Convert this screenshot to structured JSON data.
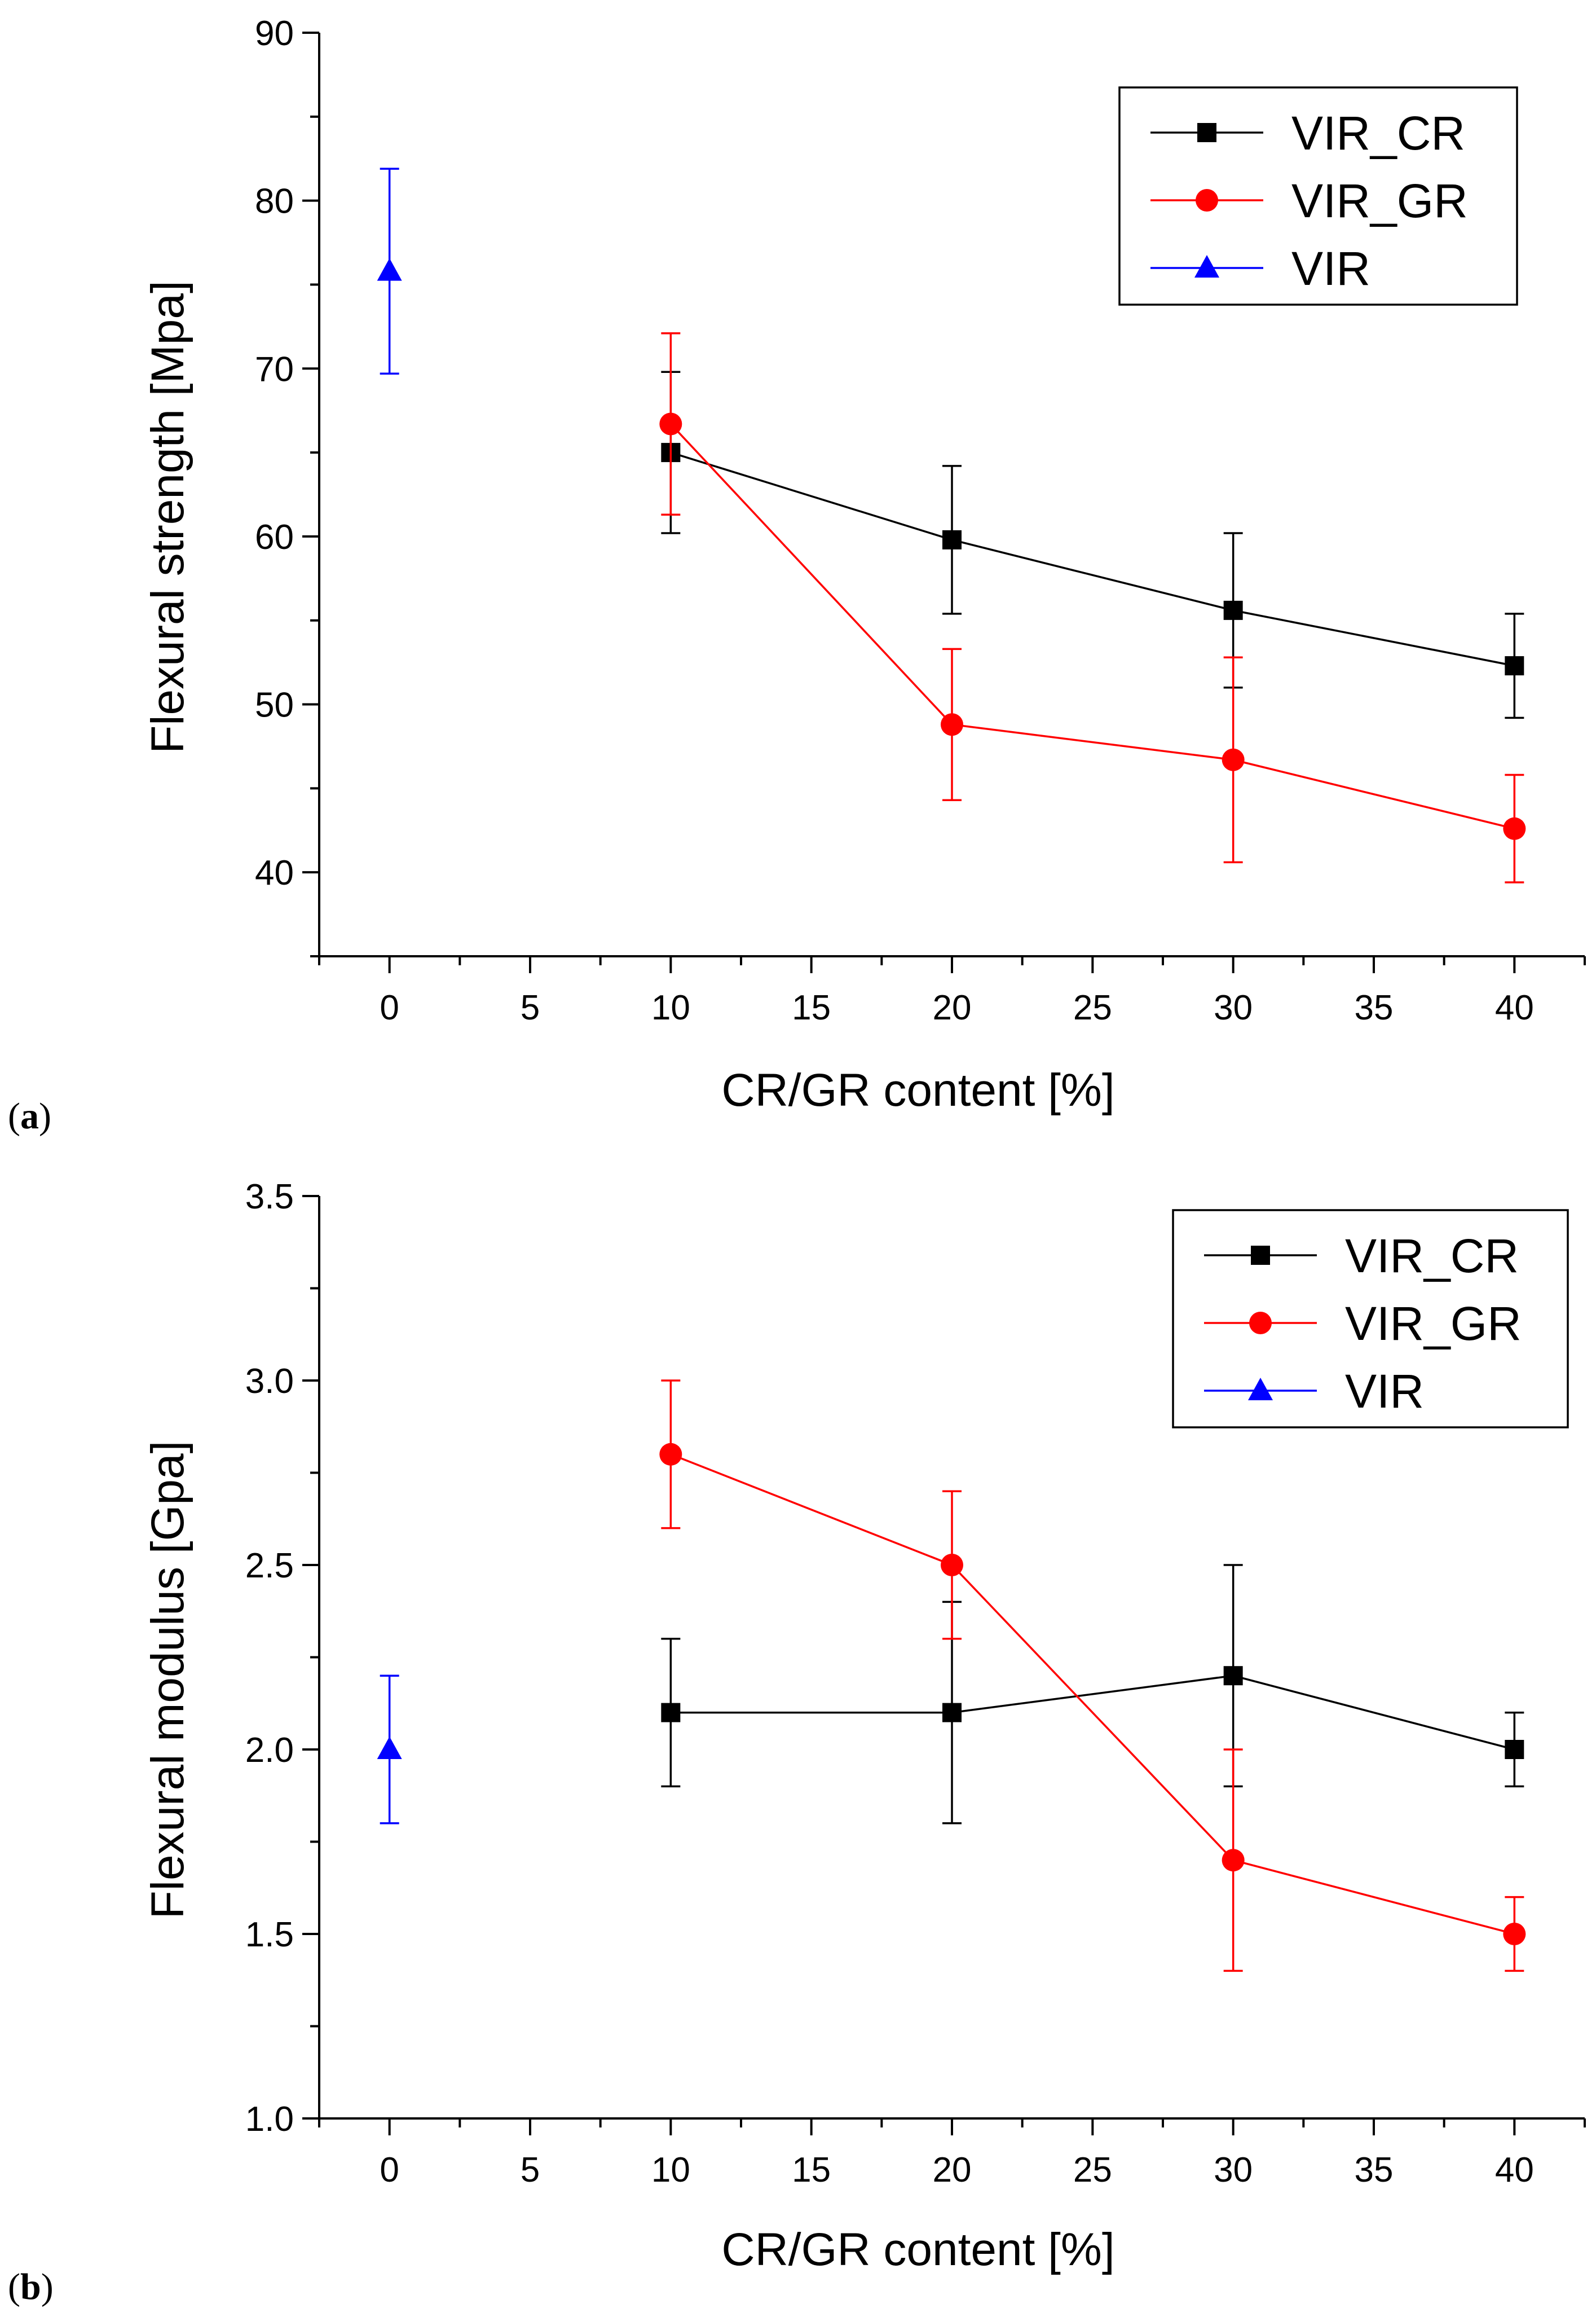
{
  "chart_data": [
    {
      "type": "line",
      "panel_label": "a",
      "xlabel": "CR/GR content [%]",
      "ylabel": "Flexural strength [Mpa]",
      "xlim": [
        -2.5,
        42.5
      ],
      "ylim": [
        35,
        90
      ],
      "xticks": [
        0,
        5,
        10,
        15,
        20,
        25,
        30,
        35,
        40
      ],
      "yticks": [
        40,
        50,
        60,
        70,
        80,
        90
      ],
      "legend_position": "top-right",
      "series": [
        {
          "name": "VIR_CR",
          "color": "#000000",
          "marker": "square",
          "x": [
            10,
            20,
            30,
            40
          ],
          "values": [
            65.0,
            59.8,
            55.6,
            52.3
          ],
          "err_lower": [
            60.2,
            55.4,
            51.0,
            49.2
          ],
          "err_upper": [
            69.8,
            64.2,
            60.2,
            55.4
          ]
        },
        {
          "name": "VIR_GR",
          "color": "#ff0000",
          "marker": "circle",
          "x": [
            10,
            20,
            30,
            40
          ],
          "values": [
            66.7,
            48.8,
            46.7,
            42.6
          ],
          "err_lower": [
            61.3,
            44.3,
            40.6,
            39.4
          ],
          "err_upper": [
            72.1,
            53.3,
            52.8,
            45.8
          ]
        },
        {
          "name": "VIR",
          "color": "#0000ff",
          "marker": "triangle",
          "x": [
            0
          ],
          "values": [
            75.8
          ],
          "err_lower": [
            69.7
          ],
          "err_upper": [
            81.9
          ]
        }
      ]
    },
    {
      "type": "line",
      "panel_label": "b",
      "xlabel": "CR/GR content [%]",
      "ylabel": "Flexural modulus [Gpa]",
      "xlim": [
        -2.5,
        42.5
      ],
      "ylim": [
        1.0,
        3.5
      ],
      "xticks": [
        0,
        5,
        10,
        15,
        20,
        25,
        30,
        35,
        40
      ],
      "yticks": [
        "1.0",
        "1.5",
        "2.0",
        "2.5",
        "3.0",
        "3.5"
      ],
      "legend_position": "top-right",
      "series": [
        {
          "name": "VIR_CR",
          "color": "#000000",
          "marker": "square",
          "x": [
            10,
            20,
            30,
            40
          ],
          "values": [
            2.1,
            2.1,
            2.2,
            2.0
          ],
          "err_lower": [
            1.9,
            1.8,
            1.9,
            1.9
          ],
          "err_upper": [
            2.3,
            2.4,
            2.5,
            2.1
          ]
        },
        {
          "name": "VIR_GR",
          "color": "#ff0000",
          "marker": "circle",
          "x": [
            10,
            20,
            30,
            40
          ],
          "values": [
            2.8,
            2.5,
            1.7,
            1.5
          ],
          "err_lower": [
            2.6,
            2.3,
            1.4,
            1.4
          ],
          "err_upper": [
            3.0,
            2.7,
            2.0,
            1.6
          ]
        },
        {
          "name": "VIR",
          "color": "#0000ff",
          "marker": "triangle",
          "x": [
            0
          ],
          "values": [
            2.0
          ],
          "err_lower": [
            1.8
          ],
          "err_upper": [
            2.2
          ]
        }
      ]
    }
  ]
}
